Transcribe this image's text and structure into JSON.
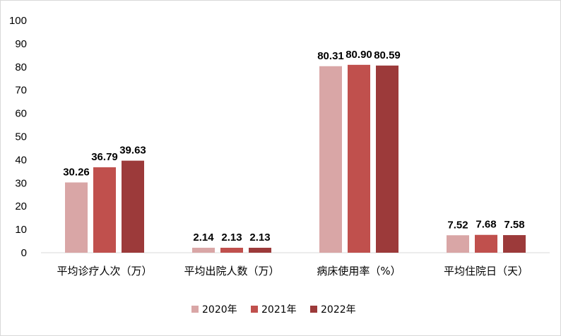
{
  "chart_data": {
    "type": "bar",
    "title": "",
    "xlabel": "",
    "ylabel": "",
    "ylim": [
      0,
      100
    ],
    "yticks": [
      0,
      10,
      20,
      30,
      40,
      50,
      60,
      70,
      80,
      90,
      100
    ],
    "grid": false,
    "legend_position": "bottom",
    "categories": [
      "平均诊疗人次（万）",
      "平均出院人数（万）",
      "病床使用率（%）",
      "平均住院日（天）"
    ],
    "series": [
      {
        "name": "2020年",
        "color": "#d9a6a6",
        "values": [
          30.26,
          2.14,
          80.31,
          7.52
        ],
        "labels": [
          "30.26",
          "2.14",
          "80.31",
          "7.52"
        ]
      },
      {
        "name": "2021年",
        "color": "#c0504d",
        "values": [
          36.79,
          2.13,
          80.9,
          7.68
        ],
        "labels": [
          "36.79",
          "2.13",
          "80.90",
          "7.68"
        ]
      },
      {
        "name": "2022年",
        "color": "#9c3a3a",
        "values": [
          39.63,
          2.13,
          80.59,
          7.58
        ],
        "labels": [
          "39.63",
          "2.13",
          "80.59",
          "7.58"
        ]
      }
    ]
  }
}
